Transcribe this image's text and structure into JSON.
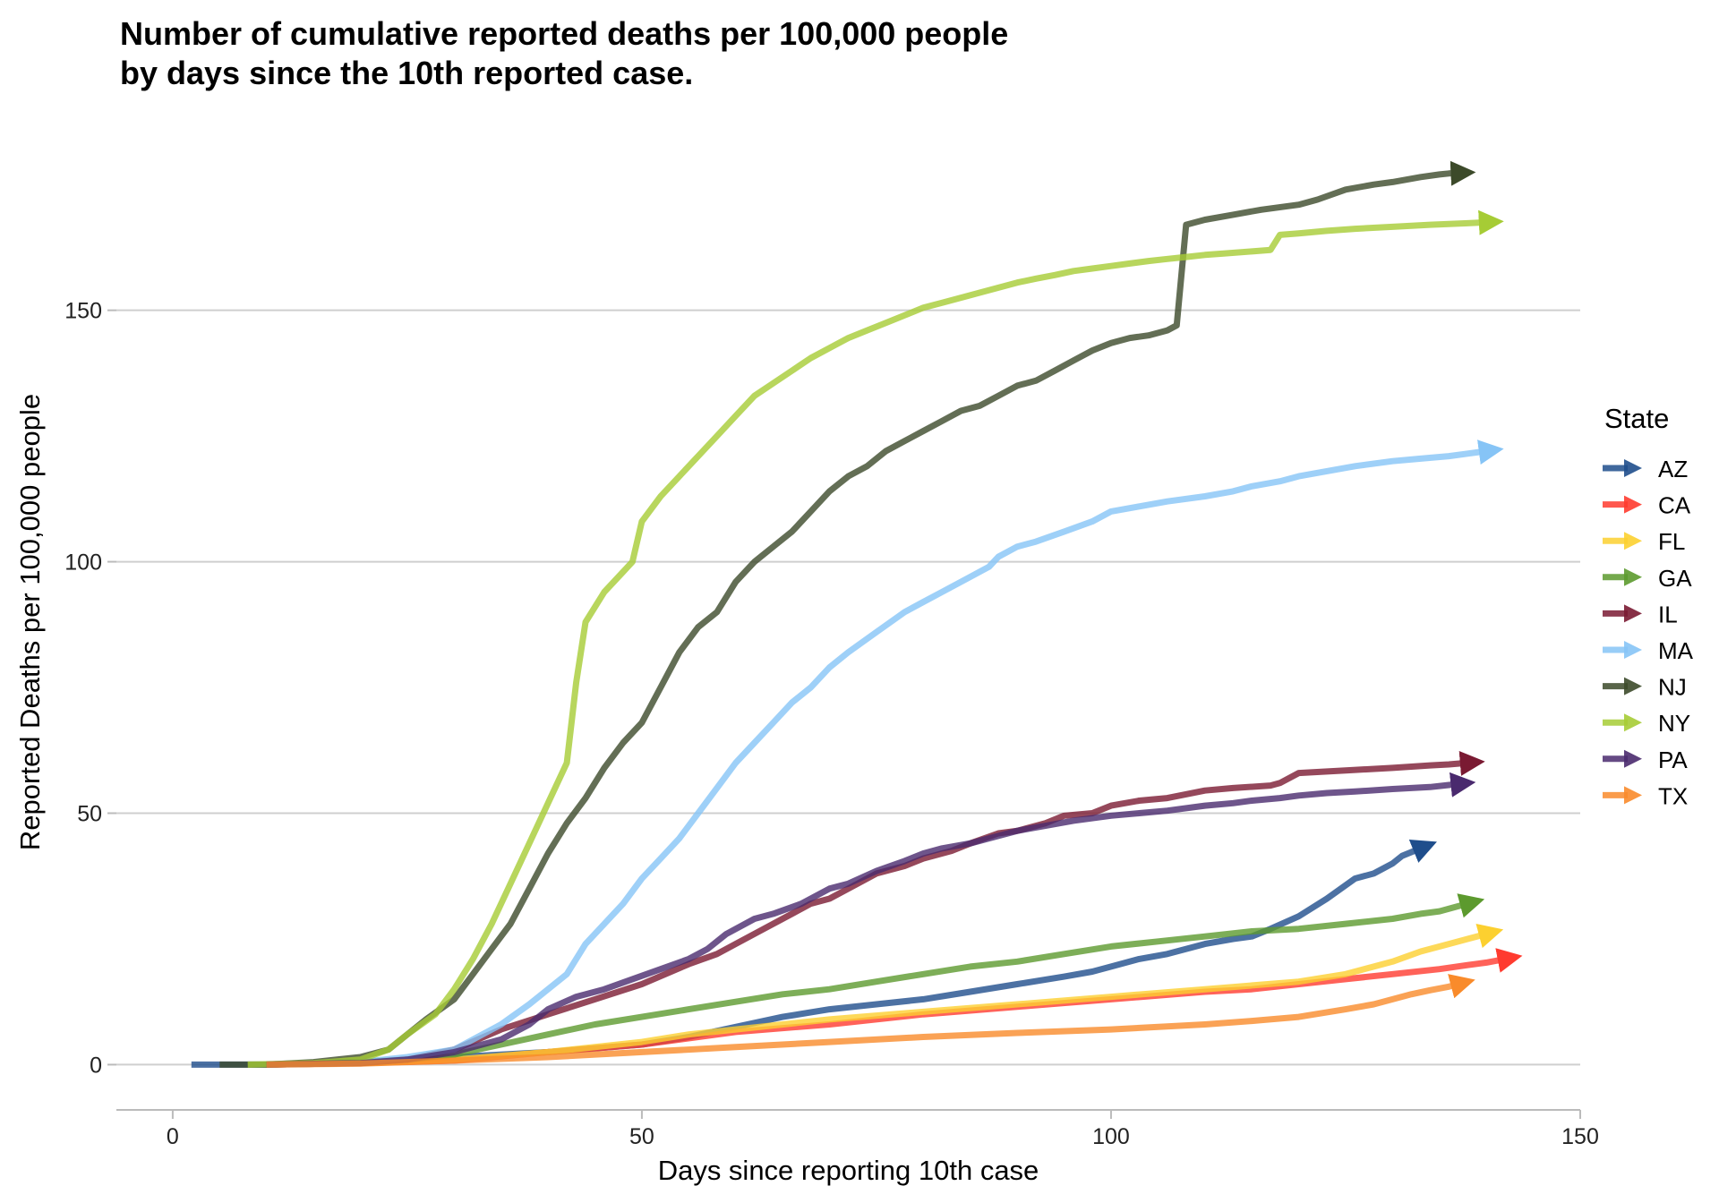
{
  "chart_data": {
    "type": "line",
    "title_lines": [
      "Number of cumulative reported deaths per 100,000 people",
      "by days since the 10th reported case."
    ],
    "xlabel": "Days since reporting 10th case",
    "ylabel": "Reported Deaths per 100,000 people",
    "xlim": [
      -6,
      150
    ],
    "ylim": [
      -9,
      185
    ],
    "xticks": [
      0,
      50,
      100,
      150
    ],
    "yticks": [
      0,
      50,
      100,
      150
    ],
    "grid": "horizontal major lines",
    "legend": {
      "title": "State",
      "position": "right"
    },
    "series": [
      {
        "name": "AZ",
        "color": "#1f4e8c",
        "x": [
          2,
          10,
          20,
          30,
          40,
          50,
          55,
          60,
          65,
          70,
          75,
          80,
          85,
          90,
          95,
          98,
          100,
          103,
          106,
          110,
          113,
          115,
          117,
          120,
          123,
          126,
          128,
          130,
          131,
          133
        ],
        "y": [
          0,
          0,
          0.5,
          1.5,
          2.5,
          4,
          5.5,
          7.5,
          9.5,
          11,
          12,
          13,
          14.5,
          16,
          17.5,
          18.5,
          19.5,
          21,
          22,
          24,
          25,
          25.5,
          27,
          29.5,
          33,
          37,
          38,
          40,
          41.5,
          43
        ]
      },
      {
        "name": "CA",
        "color": "#ff3b2f",
        "x": [
          10,
          20,
          30,
          40,
          50,
          60,
          70,
          80,
          90,
          100,
          110,
          115,
          120,
          125,
          130,
          135,
          138,
          140,
          142
        ],
        "y": [
          0,
          0.3,
          0.8,
          2.5,
          4,
          6.5,
          8,
          10,
          11.5,
          13,
          14.5,
          15,
          16,
          17,
          18,
          19,
          19.8,
          20.3,
          21
        ]
      },
      {
        "name": "FL",
        "color": "#fcd030",
        "x": [
          10,
          20,
          30,
          40,
          50,
          55,
          60,
          70,
          80,
          90,
          100,
          110,
          120,
          125,
          128,
          130,
          133,
          136,
          138,
          140
        ],
        "y": [
          0,
          0.3,
          1,
          2.5,
          4.5,
          6,
          7,
          9,
          10.5,
          12,
          13.5,
          15,
          16.5,
          18,
          19.5,
          20.5,
          22.5,
          24,
          25,
          26
        ]
      },
      {
        "name": "GA",
        "color": "#5c9a2e",
        "x": [
          10,
          20,
          25,
          30,
          35,
          40,
          45,
          50,
          55,
          60,
          65,
          70,
          75,
          80,
          85,
          90,
          95,
          100,
          105,
          110,
          115,
          120,
          125,
          130,
          133,
          135,
          137,
          138
        ],
        "y": [
          0,
          0.5,
          1,
          2,
          4,
          6,
          8,
          9.5,
          11,
          12.5,
          14,
          15,
          16.5,
          18,
          19.5,
          20.5,
          22,
          23.5,
          24.5,
          25.5,
          26.5,
          27,
          28,
          29,
          30,
          30.5,
          31.5,
          32
        ]
      },
      {
        "name": "IL",
        "color": "#7a1a32",
        "x": [
          10,
          20,
          25,
          30,
          35,
          40,
          45,
          50,
          55,
          58,
          60,
          63,
          65,
          68,
          70,
          73,
          75,
          78,
          80,
          83,
          85,
          88,
          90,
          93,
          95,
          98,
          100,
          103,
          106,
          110,
          113,
          117,
          118,
          120,
          125,
          130,
          134,
          136,
          138
        ],
        "y": [
          0,
          0.3,
          1,
          3,
          7,
          10,
          13,
          16,
          20,
          22,
          24,
          27,
          29,
          32,
          33,
          36,
          38,
          39.5,
          41,
          42.5,
          44,
          46,
          46.5,
          48,
          49.5,
          50,
          51.5,
          52.5,
          53,
          54.5,
          55,
          55.5,
          56,
          58,
          58.5,
          59,
          59.5,
          59.7,
          60
        ]
      },
      {
        "name": "MA",
        "color": "#86c4f6",
        "x": [
          10,
          20,
          25,
          30,
          35,
          38,
          40,
          42,
          44,
          46,
          48,
          50,
          52,
          54,
          56,
          58,
          60,
          62,
          64,
          66,
          68,
          70,
          72,
          75,
          78,
          80,
          82,
          85,
          87,
          88,
          90,
          92,
          95,
          98,
          100,
          103,
          106,
          110,
          113,
          115,
          118,
          120,
          123,
          126,
          130,
          133,
          136,
          138,
          140
        ],
        "y": [
          0,
          0.5,
          1.5,
          3,
          8,
          12,
          15,
          18,
          24,
          28,
          32,
          37,
          41,
          45,
          50,
          55,
          60,
          64,
          68,
          72,
          75,
          79,
          82,
          86,
          90,
          92,
          94,
          97,
          99,
          101,
          103,
          104,
          106,
          108,
          110,
          111,
          112,
          113,
          114,
          115,
          116,
          117,
          118,
          119,
          120,
          120.5,
          121,
          121.5,
          122
        ]
      },
      {
        "name": "NJ",
        "color": "#3c4a2a",
        "x": [
          5,
          10,
          15,
          20,
          23,
          25,
          27,
          30,
          32,
          34,
          36,
          38,
          40,
          42,
          44,
          46,
          48,
          50,
          52,
          54,
          56,
          58,
          60,
          62,
          64,
          66,
          68,
          70,
          72,
          74,
          76,
          78,
          80,
          82,
          84,
          86,
          88,
          90,
          92,
          94,
          96,
          98,
          100,
          102,
          104,
          106,
          107,
          108,
          110,
          113,
          116,
          120,
          122,
          125,
          128,
          130,
          133,
          135,
          136,
          137
        ],
        "y": [
          0,
          0,
          0.5,
          1.5,
          3,
          6,
          9,
          13,
          18,
          23,
          28,
          35,
          42,
          48,
          53,
          59,
          64,
          68,
          75,
          82,
          87,
          90,
          96,
          100,
          103,
          106,
          110,
          114,
          117,
          119,
          122,
          124,
          126,
          128,
          130,
          131,
          133,
          135,
          136,
          138,
          140,
          142,
          143.5,
          144.5,
          145,
          146,
          147,
          167,
          168,
          169,
          170,
          171,
          172,
          174,
          175,
          175.5,
          176.5,
          177,
          177.2,
          177.3
        ]
      },
      {
        "name": "NY",
        "color": "#a6cc35",
        "x": [
          8,
          15,
          20,
          23,
          25,
          28,
          30,
          32,
          34,
          36,
          38,
          40,
          42,
          43,
          44,
          46,
          48,
          49,
          50,
          52,
          54,
          56,
          58,
          60,
          62,
          64,
          66,
          68,
          70,
          72,
          74,
          76,
          78,
          80,
          82,
          84,
          86,
          88,
          90,
          92,
          94,
          96,
          98,
          100,
          102,
          104,
          106,
          108,
          110,
          112,
          115,
          117,
          118,
          120,
          123,
          126,
          130,
          134,
          138,
          140
        ],
        "y": [
          0,
          0.3,
          1,
          3,
          6,
          10,
          15,
          21,
          28,
          36,
          44,
          52,
          60,
          76,
          88,
          94,
          98,
          100,
          108,
          113,
          117,
          121,
          125,
          129,
          133,
          135.5,
          138,
          140.5,
          142.5,
          144.5,
          146,
          147.5,
          149,
          150.5,
          151.5,
          152.5,
          153.5,
          154.5,
          155.5,
          156.3,
          157,
          157.8,
          158.3,
          158.8,
          159.3,
          159.8,
          160.2,
          160.6,
          161,
          161.3,
          161.7,
          162,
          165,
          165.3,
          165.8,
          166.2,
          166.6,
          167,
          167.3,
          167.5
        ]
      },
      {
        "name": "PA",
        "color": "#4a2a6e",
        "x": [
          10,
          20,
          25,
          30,
          35,
          38,
          40,
          43,
          46,
          49,
          52,
          55,
          57,
          59,
          62,
          64,
          67,
          70,
          72,
          75,
          78,
          80,
          82,
          85,
          87,
          90,
          93,
          96,
          100,
          103,
          106,
          110,
          113,
          115,
          118,
          120,
          123,
          126,
          130,
          134,
          136,
          137
        ],
        "y": [
          0,
          0.3,
          1,
          2.5,
          5,
          8,
          11,
          13.5,
          15,
          17,
          19,
          21,
          23,
          26,
          29,
          30,
          32,
          35,
          36,
          38.5,
          40.5,
          42,
          43,
          44,
          45,
          46.5,
          47.5,
          48.5,
          49.5,
          50,
          50.5,
          51.5,
          52,
          52.5,
          53,
          53.5,
          54,
          54.3,
          54.8,
          55.2,
          55.6,
          55.8
        ]
      },
      {
        "name": "TX",
        "color": "#f98b2b",
        "x": [
          10,
          20,
          30,
          40,
          50,
          60,
          70,
          80,
          90,
          100,
          110,
          115,
          120,
          125,
          128,
          130,
          132,
          134,
          136,
          137
        ],
        "y": [
          0,
          0.2,
          0.8,
          1.5,
          2.5,
          3.5,
          4.5,
          5.5,
          6.3,
          7,
          8,
          8.7,
          9.5,
          11,
          12,
          13,
          14,
          14.8,
          15.5,
          16
        ]
      }
    ]
  }
}
